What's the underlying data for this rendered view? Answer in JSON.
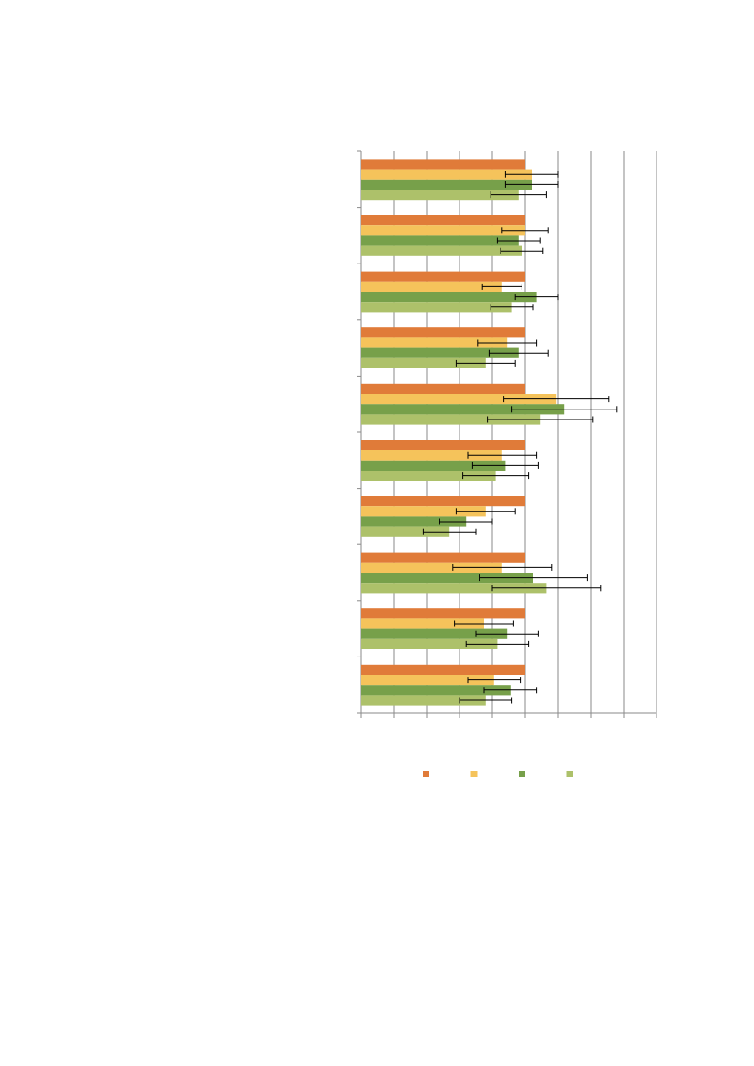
{
  "chart_data": {
    "type": "hbar",
    "categories": [
      null,
      null,
      null,
      null,
      null,
      null,
      null,
      null,
      null,
      null
    ],
    "xlim": [
      0,
      180
    ],
    "xticks": [
      0,
      20,
      40,
      60,
      80,
      100,
      120,
      140,
      160,
      180
    ],
    "grid": true,
    "series": [
      {
        "color": "#e07b39",
        "values": [
          100,
          100,
          100,
          100,
          100,
          100,
          100,
          100,
          100,
          100
        ]
      },
      {
        "color": "#f5c35b",
        "values": [
          104,
          100,
          86,
          89,
          119,
          86,
          76,
          86,
          75,
          81
        ],
        "errors": [
          16,
          14,
          12,
          18,
          32,
          21,
          18,
          30,
          18,
          16
        ]
      },
      {
        "color": "#77a04a",
        "values": [
          104,
          96,
          107,
          96,
          124,
          88,
          64,
          105,
          89,
          91
        ],
        "errors": [
          16,
          13,
          13,
          18,
          32,
          20,
          16,
          33,
          19,
          16
        ]
      },
      {
        "color": "#adc16a",
        "values": [
          96,
          98,
          92,
          76,
          109,
          82,
          54,
          113,
          83,
          76
        ],
        "errors": [
          17,
          13,
          13,
          18,
          32,
          20,
          16,
          33,
          19,
          16
        ]
      }
    ]
  }
}
